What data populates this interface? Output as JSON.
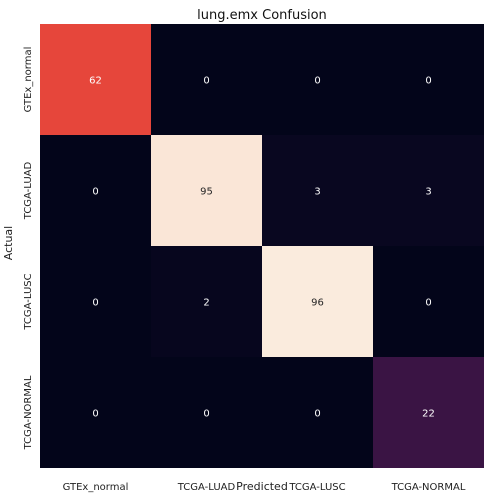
{
  "chart_data": {
    "type": "heatmap",
    "title": "lung.emx Confusion",
    "xlabel": "Predicted",
    "ylabel": "Actual",
    "x_categories": [
      "GTEx_normal",
      "TCGA-LUAD",
      "TCGA-LUSC",
      "TCGA-NORMAL"
    ],
    "y_categories": [
      "GTEx_normal",
      "TCGA-LUAD",
      "TCGA-LUSC",
      "TCGA-NORMAL"
    ],
    "values": [
      [
        62,
        0,
        0,
        0
      ],
      [
        0,
        95,
        3,
        3
      ],
      [
        0,
        2,
        96,
        0
      ],
      [
        0,
        0,
        0,
        22
      ]
    ],
    "colormap": "rocket",
    "value_range": [
      0,
      96
    ],
    "colorbar": false,
    "grid": false
  }
}
